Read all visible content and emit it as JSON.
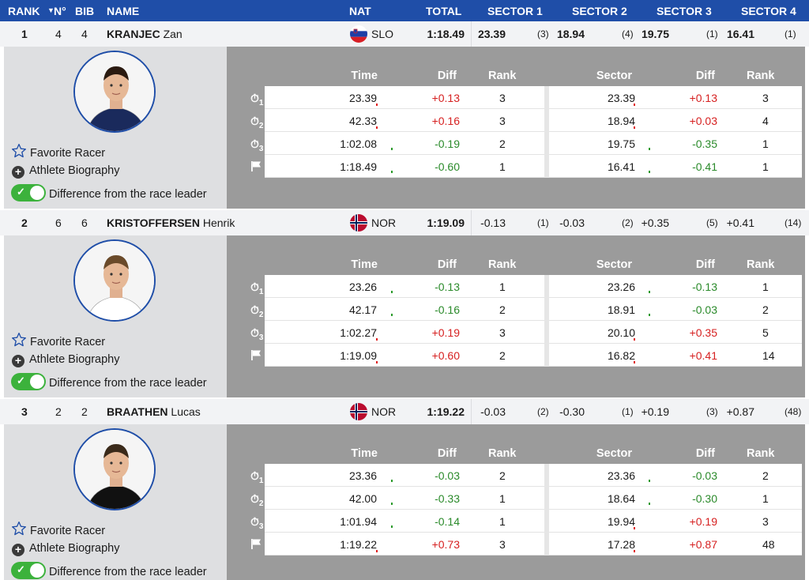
{
  "header": {
    "rank": "RANK",
    "no": "N°",
    "bib": "BIB",
    "name": "NAME",
    "nat": "NAT",
    "total": "TOTAL",
    "s1": "SECTOR 1",
    "s2": "SECTOR 2",
    "s3": "SECTOR 3",
    "s4": "SECTOR 4"
  },
  "labels": {
    "favorite": "Favorite Racer",
    "bio": "Athlete Biography",
    "diff_toggle": "Difference from the race leader",
    "time": "Time",
    "diff": "Diff",
    "rank": "Rank",
    "sector": "Sector"
  },
  "racers": [
    {
      "rank": "1",
      "no": "4",
      "bib": "4",
      "last": "KRANJEC",
      "first": "Zan",
      "nat": "SLO",
      "total": "1:18.49",
      "sectors": [
        {
          "val": "23.39",
          "rank": "(3)"
        },
        {
          "val": "18.94",
          "rank": "(4)"
        },
        {
          "val": "19.75",
          "rank": "(1)"
        },
        {
          "val": "16.41",
          "rank": "(1)"
        }
      ],
      "sectors_bold": true,
      "splits": [
        {
          "time": "23.39",
          "diff": "+0.13",
          "rank": "3",
          "sector": "23.39",
          "sdiff": "+0.13",
          "srank": "3"
        },
        {
          "time": "42.33",
          "diff": "+0.16",
          "rank": "3",
          "sector": "18.94",
          "sdiff": "+0.03",
          "srank": "4"
        },
        {
          "time": "1:02.08",
          "diff": "-0.19",
          "rank": "2",
          "sector": "19.75",
          "sdiff": "-0.35",
          "srank": "1"
        },
        {
          "time": "1:18.49",
          "diff": "-0.60",
          "rank": "1",
          "sector": "16.41",
          "sdiff": "-0.41",
          "srank": "1"
        }
      ]
    },
    {
      "rank": "2",
      "no": "6",
      "bib": "6",
      "last": "KRISTOFFERSEN",
      "first": "Henrik",
      "nat": "NOR",
      "total": "1:19.09",
      "sectors": [
        {
          "val": "-0.13",
          "rank": "(1)"
        },
        {
          "val": "-0.03",
          "rank": "(2)"
        },
        {
          "val": "+0.35",
          "rank": "(5)"
        },
        {
          "val": "+0.41",
          "rank": "(14)"
        }
      ],
      "sectors_bold": false,
      "splits": [
        {
          "time": "23.26",
          "diff": "-0.13",
          "rank": "1",
          "sector": "23.26",
          "sdiff": "-0.13",
          "srank": "1"
        },
        {
          "time": "42.17",
          "diff": "-0.16",
          "rank": "2",
          "sector": "18.91",
          "sdiff": "-0.03",
          "srank": "2"
        },
        {
          "time": "1:02.27",
          "diff": "+0.19",
          "rank": "3",
          "sector": "20.10",
          "sdiff": "+0.35",
          "srank": "5"
        },
        {
          "time": "1:19.09",
          "diff": "+0.60",
          "rank": "2",
          "sector": "16.82",
          "sdiff": "+0.41",
          "srank": "14"
        }
      ]
    },
    {
      "rank": "3",
      "no": "2",
      "bib": "2",
      "last": "BRAATHEN",
      "first": "Lucas",
      "nat": "NOR",
      "total": "1:19.22",
      "sectors": [
        {
          "val": "-0.03",
          "rank": "(2)"
        },
        {
          "val": "-0.30",
          "rank": "(1)"
        },
        {
          "val": "+0.19",
          "rank": "(3)"
        },
        {
          "val": "+0.87",
          "rank": "(48)"
        }
      ],
      "sectors_bold": false,
      "splits": [
        {
          "time": "23.36",
          "diff": "-0.03",
          "rank": "2",
          "sector": "23.36",
          "sdiff": "-0.03",
          "srank": "2"
        },
        {
          "time": "42.00",
          "diff": "-0.33",
          "rank": "1",
          "sector": "18.64",
          "sdiff": "-0.30",
          "srank": "1"
        },
        {
          "time": "1:01.94",
          "diff": "-0.14",
          "rank": "1",
          "sector": "19.94",
          "sdiff": "+0.19",
          "srank": "3"
        },
        {
          "time": "1:19.22",
          "diff": "+0.73",
          "rank": "3",
          "sector": "17.28",
          "sdiff": "+0.87",
          "srank": "48"
        }
      ]
    }
  ],
  "icons": {
    "favorite": "star-outline-icon",
    "bio": "plus-circle-icon",
    "toggle": "toggle-on-icon",
    "split": "stopwatch-icon",
    "finish": "finish-flag-icon"
  },
  "colors": {
    "header_bg": "#1f4ea8",
    "positive": "#d62020",
    "negative": "#2a8a2a",
    "toggle_on": "#3cb23c"
  }
}
